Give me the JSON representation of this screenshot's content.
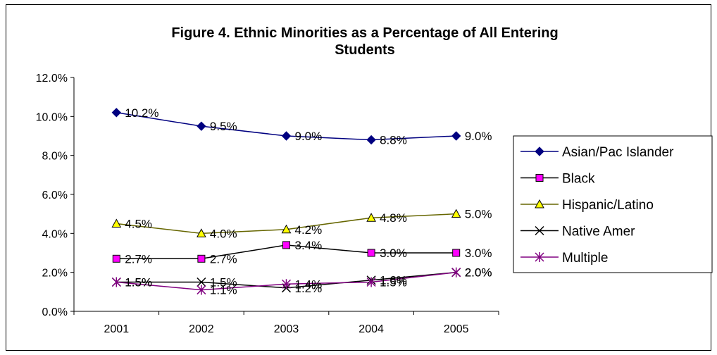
{
  "chart_data": {
    "type": "line",
    "title_line1": "Figure 4.  Ethnic Minorities as a Percentage of All Entering",
    "title_line2": "Students",
    "categories": [
      "2001",
      "2002",
      "2003",
      "2004",
      "2005"
    ],
    "ylim": [
      0,
      12
    ],
    "yticks": [
      "0.0%",
      "2.0%",
      "4.0%",
      "6.0%",
      "8.0%",
      "10.0%",
      "12.0%"
    ],
    "ytick_values": [
      0,
      2,
      4,
      6,
      8,
      10,
      12
    ],
    "grid": false,
    "legend_placement": "right",
    "series": [
      {
        "name": "Asian/Pac Islander",
        "values": [
          10.2,
          9.5,
          9.0,
          8.8,
          9.0
        ],
        "labels": [
          "10.2%",
          "9.5%",
          "9.0%",
          "8.8%",
          "9.0%"
        ],
        "color": "#000080",
        "marker": "diamond",
        "marker_fill": "#000080"
      },
      {
        "name": "Black",
        "values": [
          2.7,
          2.7,
          3.4,
          3.0,
          3.0
        ],
        "labels": [
          "2.7%",
          "2.7%",
          "3.4%",
          "3.0%",
          "3.0%"
        ],
        "color": "#000000",
        "marker": "square",
        "marker_fill": "#ff00ff"
      },
      {
        "name": "Hispanic/Latino",
        "values": [
          4.5,
          4.0,
          4.2,
          4.8,
          5.0
        ],
        "labels": [
          "4.5%",
          "4.0%",
          "4.2%",
          "4.8%",
          "5.0%"
        ],
        "color": "#666600",
        "marker": "triangle",
        "marker_fill": "#ffff00"
      },
      {
        "name": "Native Amer",
        "values": [
          1.5,
          1.5,
          1.2,
          1.6,
          2.0
        ],
        "labels": [
          "1.5%",
          "1.5%",
          "1.2%",
          "1.6%",
          "2.0%"
        ],
        "color": "#000000",
        "marker": "x",
        "marker_fill": "#000000"
      },
      {
        "name": "Multiple",
        "values": [
          1.5,
          1.1,
          1.4,
          1.5,
          2.0
        ],
        "labels": [
          "1.5%",
          "1.1%",
          "1.4%",
          "1.5%",
          "2.0%"
        ],
        "color": "#800080",
        "marker": "star",
        "marker_fill": "#800080"
      }
    ]
  }
}
